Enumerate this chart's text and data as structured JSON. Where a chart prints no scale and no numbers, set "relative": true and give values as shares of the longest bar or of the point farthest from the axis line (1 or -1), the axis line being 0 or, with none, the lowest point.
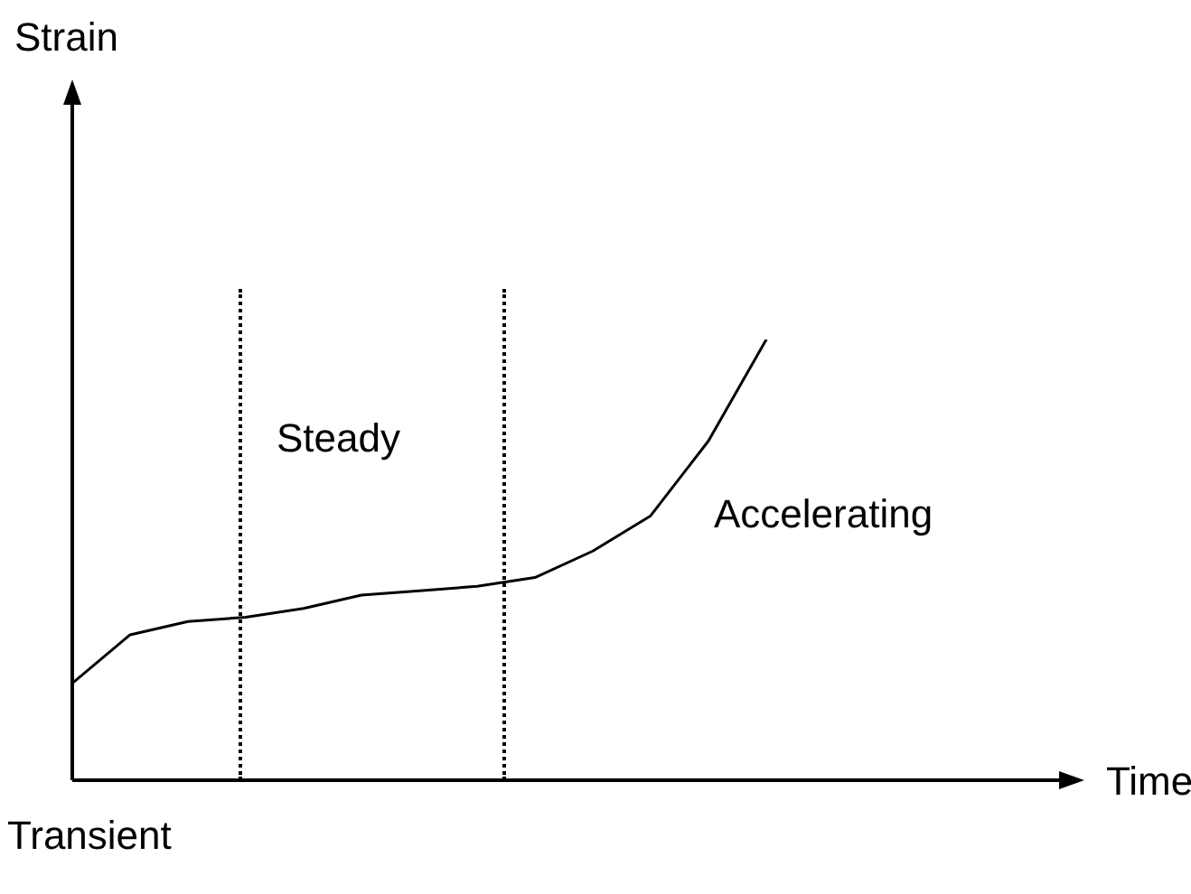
{
  "chart_data": {
    "type": "line",
    "relative": true,
    "marker": "none",
    "line_style": "solid",
    "categories": [
      null,
      null,
      null,
      null,
      null,
      null,
      null,
      null,
      null,
      null,
      null,
      null,
      null
    ],
    "series": [
      {
        "color": "#000000",
        "values": [
          0.22,
          0.33,
          0.36,
          0.37,
          0.39,
          0.42,
          0.43,
          0.44,
          0.46,
          0.52,
          0.6,
          0.77,
          1
        ]
      }
    ],
    "annotations": [
      "Strain",
      "Time",
      "Steady",
      "Accelerating",
      "Transient"
    ]
  }
}
